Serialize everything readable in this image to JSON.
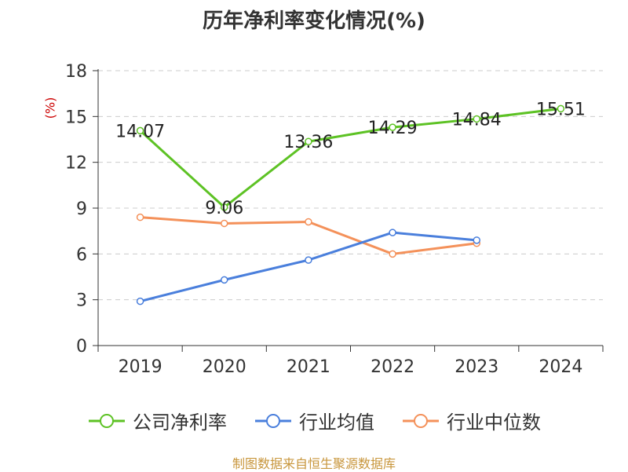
{
  "chart_data": {
    "type": "line",
    "title": "历年净利率变化情况(%)",
    "unit_label": "(%)",
    "categories": [
      "2019",
      "2020",
      "2021",
      "2022",
      "2023",
      "2024"
    ],
    "ylim": [
      0,
      18
    ],
    "yticks": [
      0,
      3,
      6,
      9,
      12,
      15,
      18
    ],
    "grid": true,
    "legend_position": "bottom",
    "series": [
      {
        "name": "公司净利率",
        "color": "#5dc224",
        "values": [
          14.07,
          9.06,
          13.36,
          14.29,
          14.84,
          15.51
        ],
        "labels": [
          "14.07",
          "9.06",
          "13.36",
          "14.29",
          "14.84",
          "15.51"
        ]
      },
      {
        "name": "行业均值",
        "color": "#4a7fdc",
        "values": [
          2.9,
          4.3,
          5.6,
          7.4,
          6.9,
          null
        ]
      },
      {
        "name": "行业中位数",
        "color": "#f4915a",
        "values": [
          8.4,
          8.0,
          8.1,
          6.0,
          6.7,
          null
        ]
      }
    ],
    "source": "制图数据来自恒生聚源数据库"
  }
}
